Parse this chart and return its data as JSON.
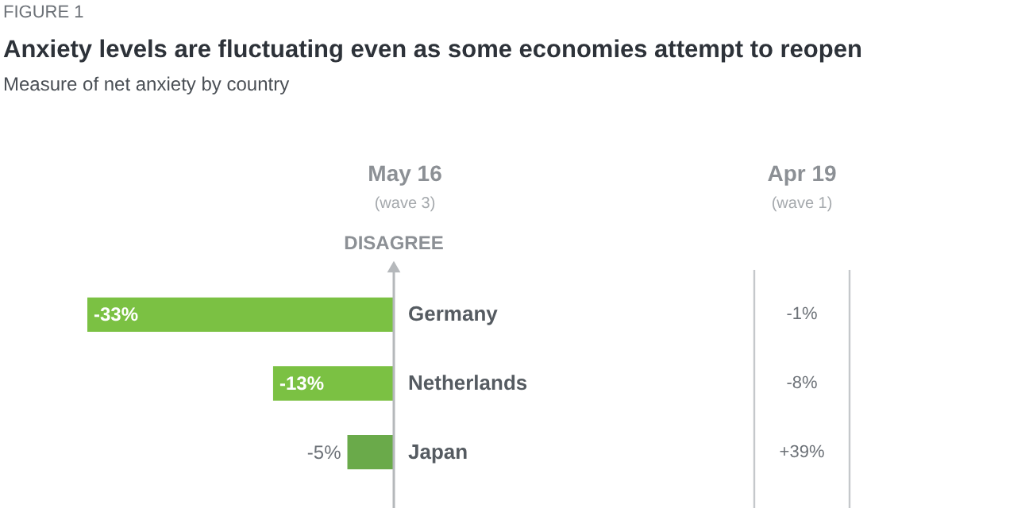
{
  "chart_data": {
    "type": "bar",
    "orientation": "horizontal",
    "title": "Anxiety levels are fluctuating even as some economies attempt to reopen",
    "subtitle": "Measure of net anxiety by country",
    "categories": [
      "Germany",
      "Netherlands",
      "Japan"
    ],
    "series": [
      {
        "name": "May 16",
        "colors": [
          "#7bc143",
          "#7bc143",
          "#6aaa4a"
        ],
        "values": [
          -33,
          -13,
          -5
        ],
        "value_labels": [
          "-33%",
          "-13%",
          "-5%"
        ]
      }
    ],
    "annotations": [
      "FIGURE 1",
      "(wave 3)",
      "Apr 19",
      "(wave 1)",
      "DISAGREE",
      "-1%",
      "-8%",
      "+39%"
    ]
  }
}
